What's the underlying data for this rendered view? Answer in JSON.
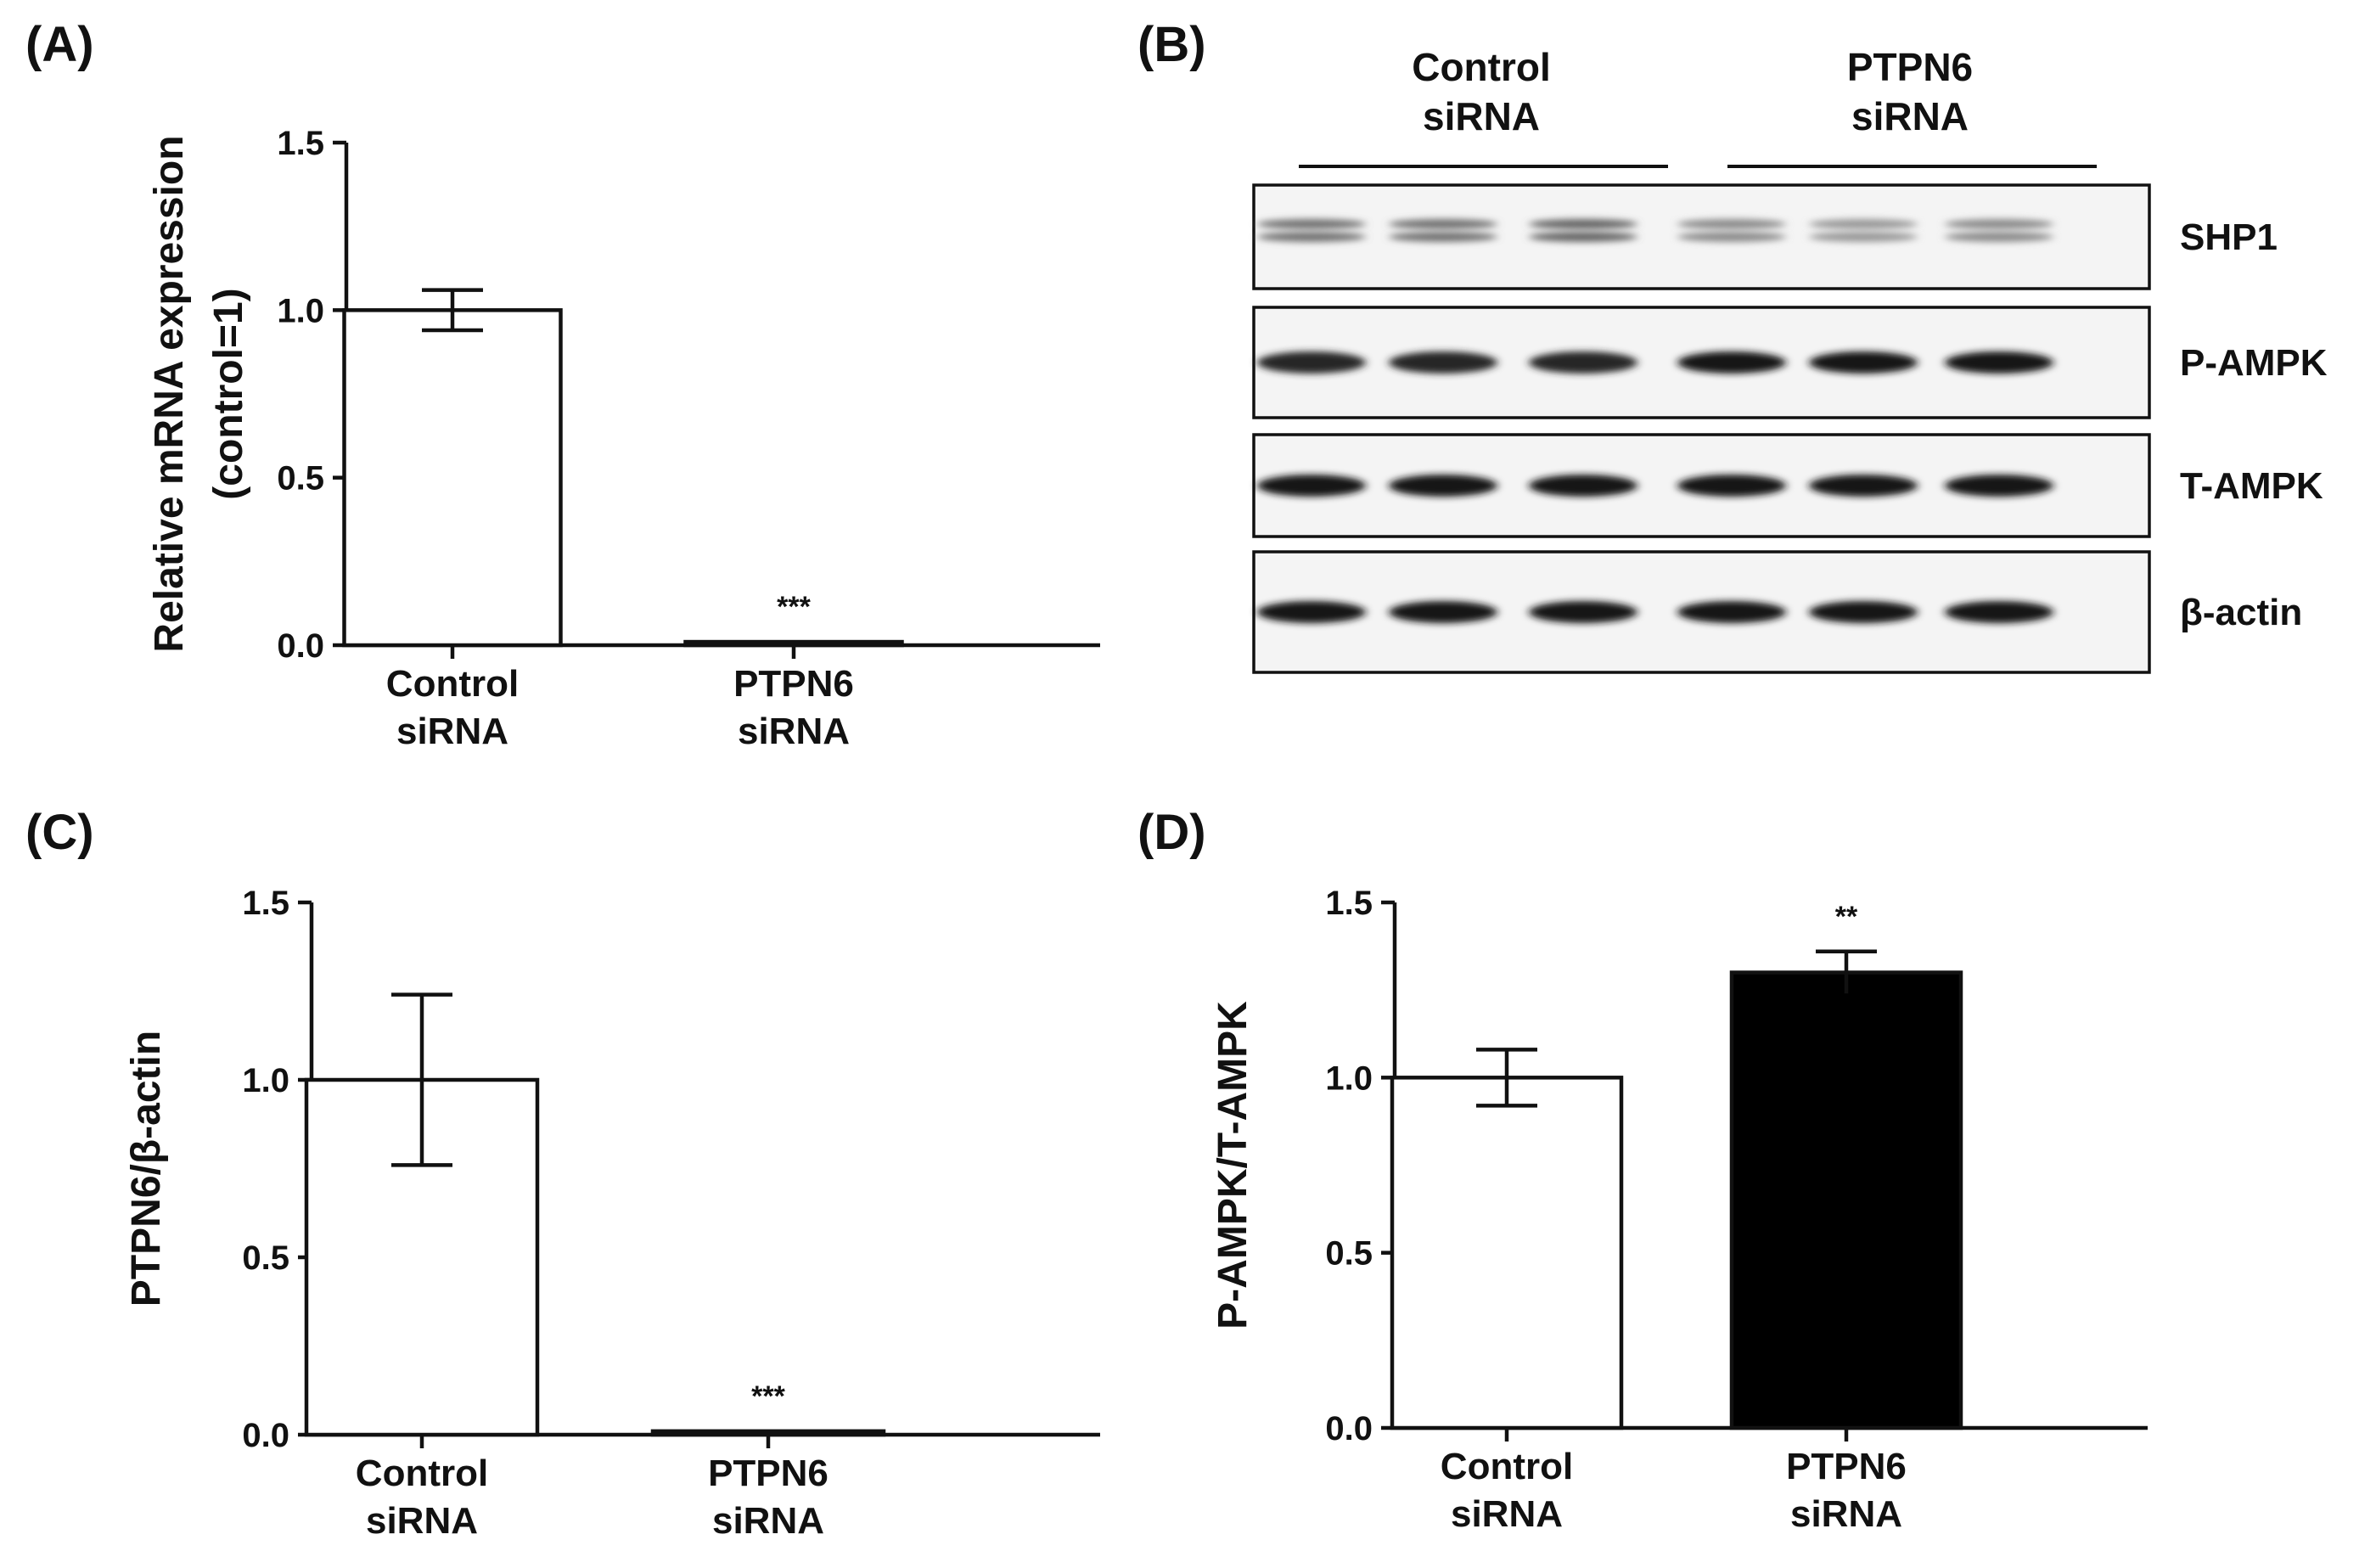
{
  "panels": {
    "A": {
      "label": "(A)",
      "chart_data": {
        "type": "bar",
        "categories": [
          "Control siRNA",
          "PTPN6 siRNA"
        ],
        "category_lines": [
          [
            "Control",
            "siRNA"
          ],
          [
            "PTPN6",
            "siRNA"
          ]
        ],
        "values": [
          1.0,
          0.01
        ],
        "errors": [
          0.06,
          0.0
        ],
        "fills": [
          "#ffffff",
          "#ffffff"
        ],
        "significance": [
          "",
          "***"
        ],
        "ylabel_lines": [
          "Relative mRNA expression",
          "(control=1)"
        ],
        "ylim": [
          0,
          1.5
        ],
        "yticks": [
          "0.0",
          "0.5",
          "1.0",
          "1.5"
        ],
        "ytick_values": [
          0,
          0.5,
          1.0,
          1.5
        ]
      }
    },
    "B": {
      "label": "(B)",
      "groups": [
        {
          "lines": [
            "Control",
            "siRNA"
          ]
        },
        {
          "lines": [
            "PTPN6",
            "siRNA"
          ]
        }
      ],
      "rows": [
        {
          "name": "SHP1",
          "intensity": [
            0.55,
            0.55,
            0.6,
            0.45,
            0.4,
            0.45
          ],
          "double": true
        },
        {
          "name": "P-AMPK",
          "intensity": [
            0.85,
            0.85,
            0.85,
            0.9,
            0.9,
            0.92
          ],
          "double": false
        },
        {
          "name": "T-AMPK",
          "intensity": [
            0.92,
            0.92,
            0.92,
            0.9,
            0.9,
            0.92
          ],
          "double": false
        },
        {
          "name": "β-actin",
          "intensity": [
            0.92,
            0.92,
            0.92,
            0.92,
            0.92,
            0.92
          ],
          "double": false
        }
      ]
    },
    "C": {
      "label": "(C)",
      "chart_data": {
        "type": "bar",
        "categories": [
          "Control siRNA",
          "PTPN6 siRNA"
        ],
        "category_lines": [
          [
            "Control",
            "siRNA"
          ],
          [
            "PTPN6",
            "siRNA"
          ]
        ],
        "values": [
          1.0,
          0.01
        ],
        "errors": [
          0.24,
          0.0
        ],
        "fills": [
          "#ffffff",
          "#ffffff"
        ],
        "significance": [
          "",
          "***"
        ],
        "ylabel_lines": [
          "PTPN6/β-actin"
        ],
        "ylim": [
          0,
          1.5
        ],
        "yticks": [
          "0.0",
          "0.5",
          "1.0",
          "1.5"
        ],
        "ytick_values": [
          0,
          0.5,
          1.0,
          1.5
        ]
      }
    },
    "D": {
      "label": "(D)",
      "chart_data": {
        "type": "bar",
        "categories": [
          "Control siRNA",
          "PTPN6 siRNA"
        ],
        "category_lines": [
          [
            "Control",
            "siRNA"
          ],
          [
            "PTPN6",
            "siRNA"
          ]
        ],
        "values": [
          1.0,
          1.3
        ],
        "errors": [
          0.08,
          0.06
        ],
        "fills": [
          "#ffffff",
          "#000000"
        ],
        "significance": [
          "",
          "**"
        ],
        "ylabel_lines": [
          "P-AMPK/T-AMPK"
        ],
        "ylim": [
          0,
          1.5
        ],
        "yticks": [
          "0.0",
          "0.5",
          "1.0",
          "1.5"
        ],
        "ytick_values": [
          0,
          0.5,
          1.0,
          1.5
        ]
      }
    }
  }
}
